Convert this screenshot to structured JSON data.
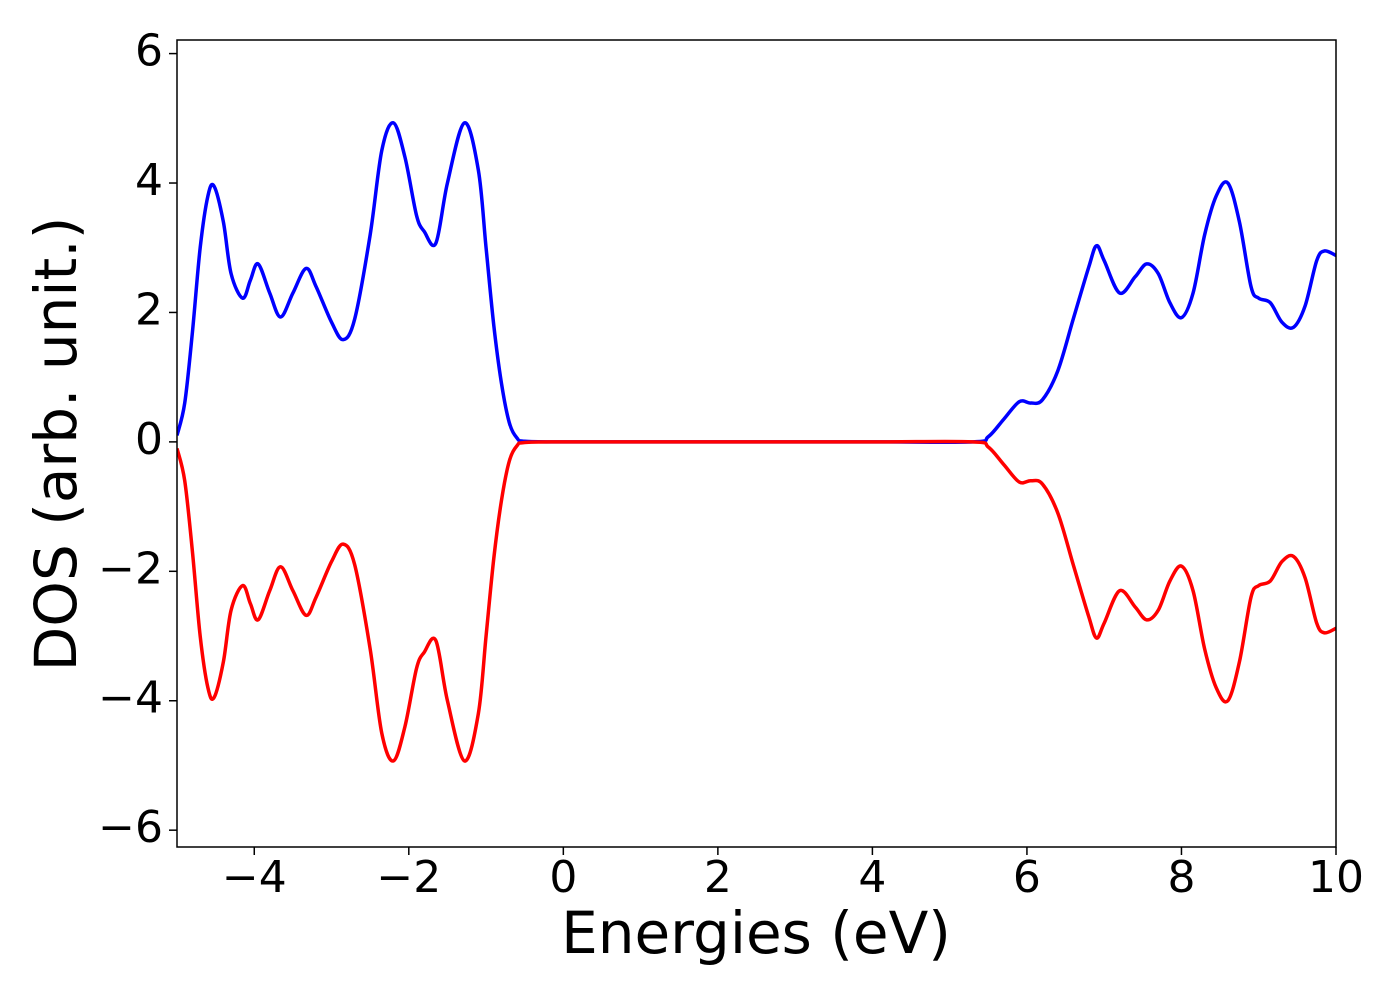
{
  "chart_data": {
    "type": "line",
    "xlabel": "Energies (eV)",
    "ylabel": "DOS (arb. unit.)",
    "x": [
      -5,
      -4.9,
      -4.8,
      -4.7,
      -4.6,
      -4.52,
      -4.4,
      -4.3,
      -4.15,
      -4.05,
      -3.95,
      -3.8,
      -3.66,
      -3.5,
      -3.33,
      -3.2,
      -3.0,
      -2.85,
      -2.7,
      -2.5,
      -2.35,
      -2.2,
      -2.05,
      -1.9,
      -1.8,
      -1.65,
      -1.5,
      -1.28,
      -1.1,
      -1.0,
      -0.9,
      -0.8,
      -0.7,
      -0.6,
      -0.5,
      0,
      2,
      4,
      5.3,
      5.5,
      5.7,
      5.9,
      6.05,
      6.2,
      6.4,
      6.6,
      6.8,
      6.9,
      7.0,
      7.2,
      7.4,
      7.55,
      7.7,
      7.85,
      8.0,
      8.15,
      8.3,
      8.45,
      8.6,
      8.75,
      8.9,
      9.0,
      9.15,
      9.3,
      9.45,
      9.6,
      9.75,
      9.85,
      10
    ],
    "series": [
      {
        "color": "#0000ff",
        "values": [
          0.1,
          0.6,
          1.7,
          3.0,
          3.8,
          3.95,
          3.4,
          2.6,
          2.22,
          2.5,
          2.75,
          2.3,
          1.93,
          2.3,
          2.68,
          2.4,
          1.85,
          1.58,
          1.9,
          3.2,
          4.5,
          4.93,
          4.4,
          3.5,
          3.25,
          3.07,
          4.0,
          4.93,
          4.2,
          3.0,
          1.8,
          0.9,
          0.3,
          0.06,
          0.01,
          0,
          0,
          0,
          0,
          0.08,
          0.35,
          0.62,
          0.6,
          0.65,
          1.1,
          1.9,
          2.7,
          3.03,
          2.8,
          2.3,
          2.55,
          2.75,
          2.6,
          2.15,
          1.92,
          2.3,
          3.2,
          3.8,
          4.0,
          3.4,
          2.4,
          2.22,
          2.15,
          1.85,
          1.77,
          2.1,
          2.8,
          2.95,
          2.88
        ]
      },
      {
        "color": "#ff0000",
        "values": [
          -0.1,
          -0.6,
          -1.7,
          -3.0,
          -3.8,
          -3.95,
          -3.4,
          -2.6,
          -2.22,
          -2.5,
          -2.75,
          -2.3,
          -1.93,
          -2.3,
          -2.68,
          -2.4,
          -1.85,
          -1.58,
          -1.9,
          -3.2,
          -4.5,
          -4.93,
          -4.4,
          -3.5,
          -3.25,
          -3.07,
          -4.0,
          -4.93,
          -4.2,
          -3.0,
          -1.8,
          -0.9,
          -0.3,
          -0.06,
          -0.01,
          0,
          0,
          0,
          0,
          -0.08,
          -0.35,
          -0.62,
          -0.6,
          -0.65,
          -1.1,
          -1.9,
          -2.7,
          -3.03,
          -2.8,
          -2.3,
          -2.55,
          -2.75,
          -2.6,
          -2.15,
          -1.92,
          -2.3,
          -3.2,
          -3.8,
          -4.0,
          -3.4,
          -2.4,
          -2.22,
          -2.15,
          -1.85,
          -1.77,
          -2.1,
          -2.8,
          -2.95,
          -2.88
        ]
      }
    ],
    "xlim": [
      -5,
      10
    ],
    "xticks": [
      {
        "value": -4,
        "label": "−4"
      },
      {
        "value": -2,
        "label": "−2"
      },
      0,
      2,
      4,
      6,
      8,
      10
    ],
    "ylim": [
      -6.26,
      6.21
    ],
    "yticks": [
      {
        "value": -6,
        "label": "−6"
      },
      {
        "value": -4,
        "label": "−4"
      },
      {
        "value": -2,
        "label": "−2"
      },
      0,
      2,
      4,
      6
    ],
    "grid": false
  }
}
